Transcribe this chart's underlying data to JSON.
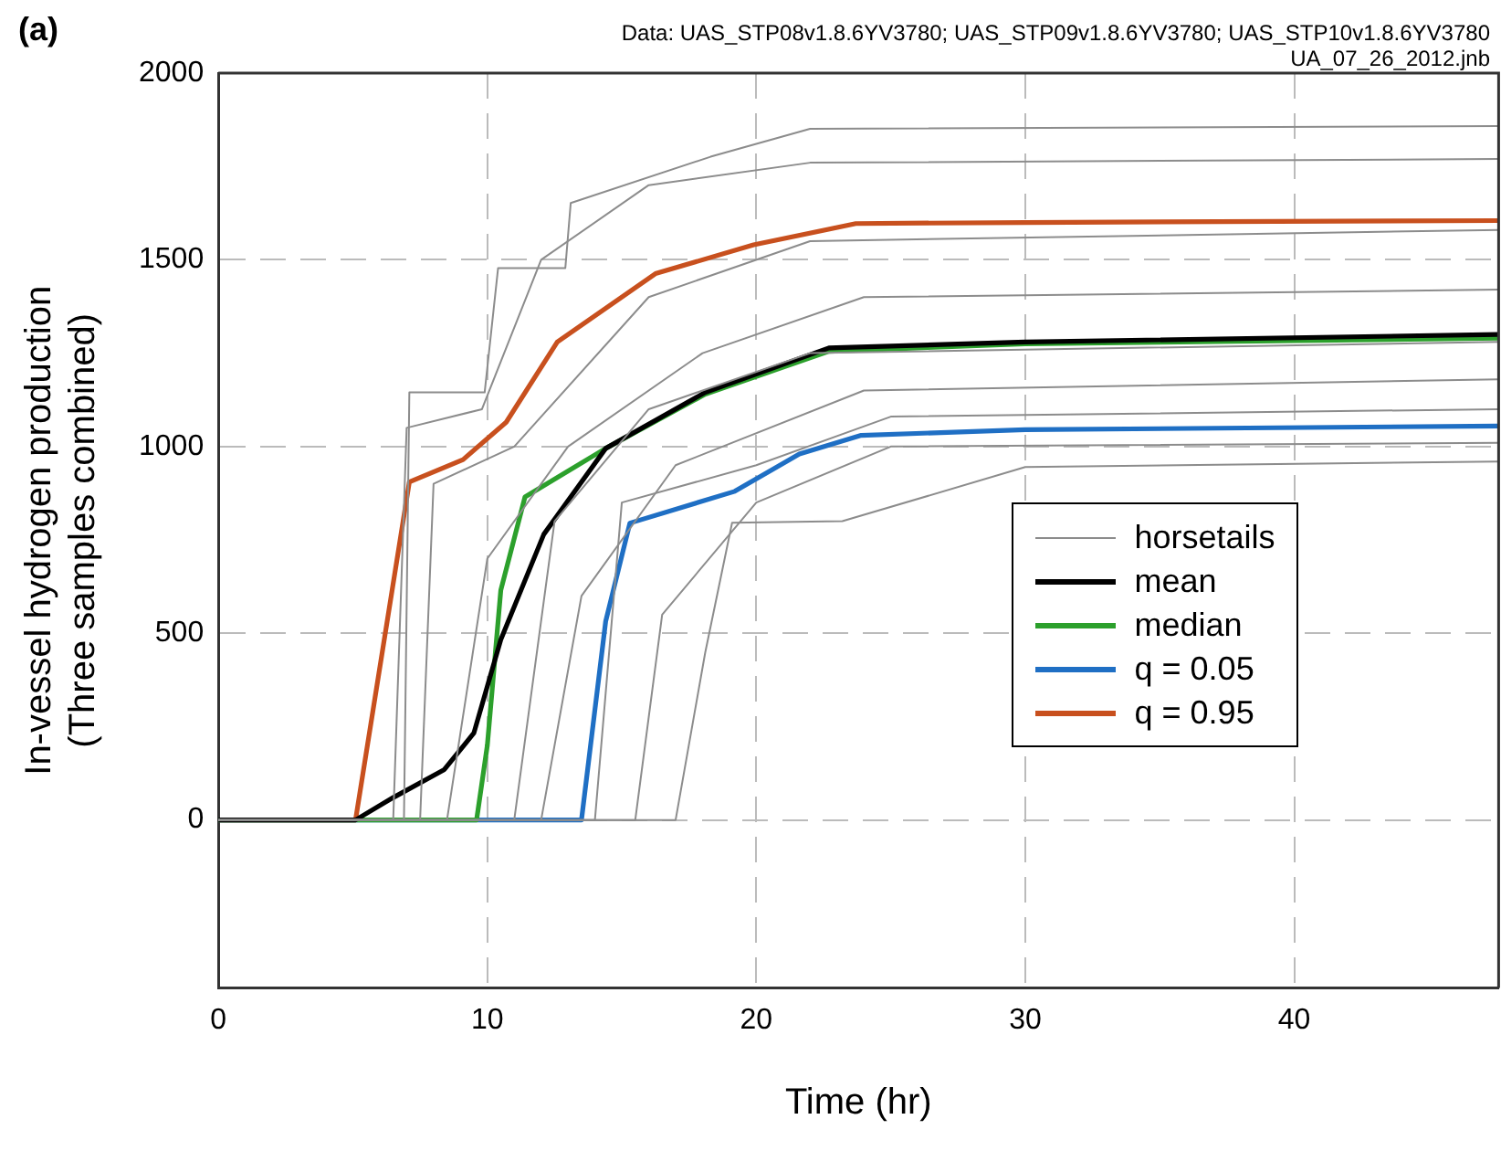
{
  "chart_data": {
    "type": "line",
    "xlabel": "Time (hr)",
    "ylabel": "In-vessel hydrogen production\n(Three samples combined)",
    "annotations": [
      "(a)",
      "Data: UAS_STP08v1.8.6YV3780; UAS_STP09v1.8.6YV3780; UAS_STP10v1.8.6YV3780",
      "UA_07_26_2012.jnb"
    ],
    "xlim": [
      0,
      47.6
    ],
    "xticks": [
      0,
      10,
      20,
      30,
      40
    ],
    "ylim": [
      -450,
      2000
    ],
    "yticks": [
      0,
      500,
      1000,
      1500,
      2000
    ],
    "grid": true,
    "legend": "center right",
    "marker": "none",
    "line_style": "solid",
    "series": [
      {
        "name": "horsetails",
        "color": "#8c8c8c",
        "x": [
          0,
          6.9,
          7.1,
          9.9,
          10.4,
          12.9,
          13.1,
          18.3,
          22,
          47.6
        ],
        "values": [
          0,
          0,
          1145,
          1145,
          1478,
          1478,
          1652,
          1776,
          1851,
          1858
        ]
      },
      {
        "color": "#8c8c8c",
        "x": [
          0,
          6.5,
          7,
          9.8,
          12,
          16,
          22,
          47.6
        ],
        "values": [
          0,
          0,
          1050,
          1100,
          1500,
          1700,
          1760,
          1770
        ]
      },
      {
        "color": "#8c8c8c",
        "x": [
          0,
          7.5,
          8,
          11,
          16,
          22,
          47.6
        ],
        "values": [
          0,
          0,
          900,
          1000,
          1400,
          1550,
          1580
        ]
      },
      {
        "color": "#8c8c8c",
        "x": [
          0,
          8.5,
          10,
          13,
          18,
          24,
          47.6
        ],
        "values": [
          0,
          0,
          700,
          1000,
          1250,
          1400,
          1420
        ]
      },
      {
        "color": "#8c8c8c",
        "x": [
          0,
          11,
          12.5,
          16,
          22,
          47.6
        ],
        "values": [
          0,
          0,
          800,
          1100,
          1250,
          1280
        ]
      },
      {
        "color": "#8c8c8c",
        "x": [
          0,
          12,
          13.5,
          17,
          24,
          47.6
        ],
        "values": [
          0,
          0,
          600,
          950,
          1150,
          1180
        ]
      },
      {
        "color": "#8c8c8c",
        "x": [
          0,
          14,
          15,
          20,
          25,
          47.6
        ],
        "values": [
          0,
          0,
          850,
          950,
          1080,
          1100
        ]
      },
      {
        "color": "#8c8c8c",
        "x": [
          0,
          15.5,
          16.5,
          20,
          25,
          47.6
        ],
        "values": [
          0,
          0,
          550,
          850,
          1000,
          1010
        ]
      },
      {
        "color": "#8c8c8c",
        "x": [
          0,
          17,
          18.1,
          19.1,
          23.2,
          30,
          47.6
        ],
        "values": [
          0,
          0,
          448,
          796,
          800,
          945,
          960
        ]
      },
      {
        "name": "mean",
        "color": "#000000",
        "x": [
          0,
          5.1,
          6.5,
          8.4,
          9.5,
          10.5,
          12.1,
          14.4,
          18.1,
          22.7,
          30,
          47.6
        ],
        "values": [
          0,
          0,
          60,
          135,
          233,
          483,
          765,
          995,
          1145,
          1264,
          1280,
          1300
        ]
      },
      {
        "name": "median",
        "color": "#2ca02c",
        "x": [
          0,
          9.6,
          10,
          10.5,
          11.4,
          14.4,
          18.1,
          22.7,
          30,
          47.6
        ],
        "values": [
          0,
          0,
          200,
          615,
          865,
          995,
          1140,
          1255,
          1275,
          1290
        ]
      },
      {
        "name": "q = 0.05",
        "color": "#1f6fc4",
        "x": [
          0,
          13.5,
          14.4,
          15.3,
          19.2,
          21.6,
          23.9,
          30,
          47.6
        ],
        "values": [
          0,
          0,
          532,
          795,
          880,
          980,
          1030,
          1045,
          1055
        ]
      },
      {
        "name": "q = 0.95",
        "color": "#c8501e",
        "x": [
          0,
          5.1,
          7.1,
          9.1,
          10.7,
          12.6,
          16.25,
          19.9,
          23.7,
          30,
          47.6
        ],
        "values": [
          0,
          0,
          905,
          965,
          1065,
          1280,
          1463,
          1540,
          1597,
          1600,
          1605
        ]
      }
    ]
  }
}
